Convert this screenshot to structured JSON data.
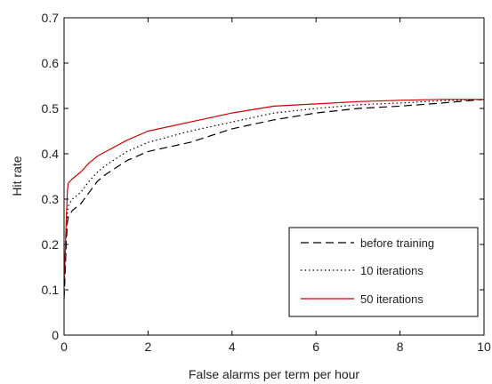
{
  "chart_data": {
    "type": "line",
    "xlabel": "False alarms per term per hour",
    "ylabel": "Hit rate",
    "xlim": [
      0,
      10
    ],
    "ylim": [
      0,
      0.7
    ],
    "xticks": [
      0,
      2,
      4,
      6,
      8,
      10
    ],
    "yticks": [
      0,
      0.1,
      0.2,
      0.3,
      0.4,
      0.5,
      0.6,
      0.7
    ],
    "xtick_labels": [
      "0",
      "2",
      "4",
      "6",
      "8",
      "10"
    ],
    "ytick_labels": [
      "0",
      "0.1",
      "0.2",
      "0.3",
      "0.4",
      "0.5",
      "0.6",
      "0.7"
    ],
    "grid": false,
    "legend_position": "lower-right",
    "series": [
      {
        "name": "before training",
        "color": "#000000",
        "line_style": "dashed",
        "x": [
          0,
          0.02,
          0.05,
          0.08,
          0.1,
          0.2,
          0.4,
          0.6,
          0.8,
          1.0,
          1.5,
          2,
          3,
          4,
          5,
          6,
          7,
          8,
          9,
          10
        ],
        "y": [
          0.08,
          0.12,
          0.2,
          0.25,
          0.26,
          0.275,
          0.29,
          0.315,
          0.34,
          0.355,
          0.385,
          0.405,
          0.425,
          0.455,
          0.475,
          0.49,
          0.5,
          0.505,
          0.512,
          0.52
        ]
      },
      {
        "name": "10 iterations",
        "color": "#000000",
        "line_style": "dotted",
        "x": [
          0,
          0.02,
          0.05,
          0.08,
          0.1,
          0.2,
          0.4,
          0.6,
          0.8,
          1.0,
          1.5,
          2,
          3,
          4,
          5,
          6,
          7,
          8,
          9,
          10
        ],
        "y": [
          0.1,
          0.14,
          0.22,
          0.27,
          0.285,
          0.3,
          0.315,
          0.34,
          0.36,
          0.375,
          0.405,
          0.425,
          0.45,
          0.47,
          0.49,
          0.5,
          0.508,
          0.512,
          0.517,
          0.52
        ]
      },
      {
        "name": "50 iterations",
        "color": "#cc0000",
        "line_style": "solid",
        "x": [
          0,
          0.02,
          0.05,
          0.08,
          0.1,
          0.2,
          0.4,
          0.6,
          0.8,
          1.0,
          1.5,
          2,
          3,
          4,
          5,
          6,
          7,
          8,
          9,
          10
        ],
        "y": [
          0.12,
          0.16,
          0.25,
          0.32,
          0.335,
          0.345,
          0.36,
          0.38,
          0.395,
          0.405,
          0.43,
          0.45,
          0.47,
          0.49,
          0.505,
          0.51,
          0.515,
          0.518,
          0.52,
          0.52
        ]
      }
    ]
  }
}
